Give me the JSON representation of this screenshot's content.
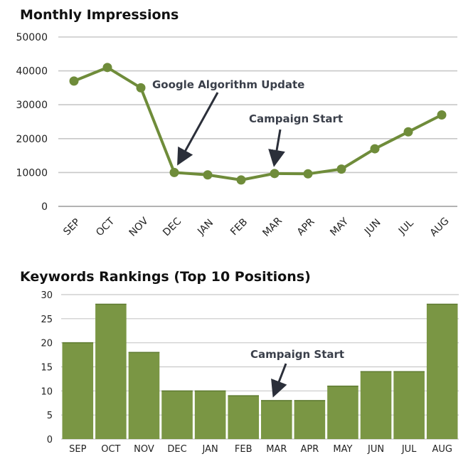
{
  "chart_data": [
    {
      "type": "line",
      "title": "Monthly Impressions",
      "categories": [
        "SEP",
        "OCT",
        "NOV",
        "DEC",
        "JAN",
        "FEB",
        "MAR",
        "APR",
        "MAY",
        "JUN",
        "JUL",
        "AUG"
      ],
      "series": [
        {
          "values": [
            37000,
            41000,
            35000,
            10000,
            9300,
            7800,
            9700,
            9600,
            11000,
            17000,
            22000,
            27000
          ]
        }
      ],
      "ylim": [
        0,
        50000
      ],
      "yticks": [
        "0",
        "10000",
        "20000",
        "30000",
        "40000",
        "50000"
      ],
      "grid": true,
      "color": "#6f8c3a",
      "annotations": [
        {
          "text": "Google Algorithm Update",
          "target": "DEC"
        },
        {
          "text": "Campaign Start",
          "target": "MAR"
        }
      ]
    },
    {
      "type": "bar",
      "title": "Keywords Rankings (Top 10 Positions)",
      "categories": [
        "SEP",
        "OCT",
        "NOV",
        "DEC",
        "JAN",
        "FEB",
        "MAR",
        "APR",
        "MAY",
        "JUN",
        "JUL",
        "AUG"
      ],
      "values": [
        20,
        28,
        18,
        10,
        10,
        9,
        8,
        8,
        11,
        14,
        14,
        28
      ],
      "ylim": [
        0,
        30
      ],
      "yticks": [
        "0",
        "5",
        "10",
        "15",
        "20",
        "25",
        "30"
      ],
      "grid": true,
      "color": "#7a9644",
      "annotations": [
        {
          "text": "Campaign Start",
          "target": "MAR"
        }
      ]
    }
  ]
}
